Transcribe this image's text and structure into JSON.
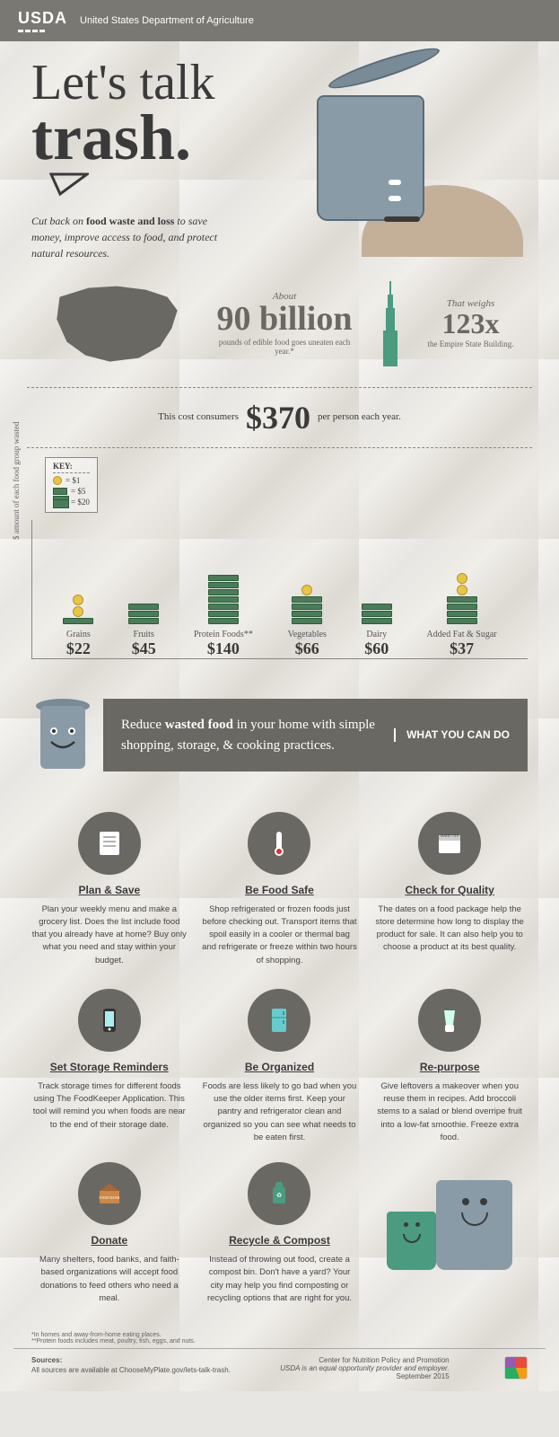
{
  "header": {
    "logo_text": "USDA",
    "subtitle": "United States Department of Agriculture"
  },
  "hero": {
    "title_line1": "Let's talk",
    "title_line2": "trash.",
    "subtitle_pre": "Cut back on ",
    "subtitle_bold": "food waste and loss",
    "subtitle_post": " to save money, improve access to food, and protect natural resources."
  },
  "stat_food": {
    "about": "About",
    "number": "90 billion",
    "desc": "pounds of edible food goes uneaten each year.*"
  },
  "stat_weight": {
    "pre": "That weighs",
    "number": "123x",
    "desc": "the Empire State Building."
  },
  "cost": {
    "pre": "This cost consumers",
    "amount": "$370",
    "post": "per person each year."
  },
  "chart": {
    "y_label": "$ amount of each food group wasted",
    "key_title": "KEY:",
    "key_coin": "= $1",
    "key_bill": "= $5",
    "key_stack": "= $20",
    "categories": [
      {
        "label": "Grains",
        "amount": "$22",
        "value": 22
      },
      {
        "label": "Fruits",
        "amount": "$45",
        "value": 45
      },
      {
        "label": "Protein Foods**",
        "amount": "$140",
        "value": 140
      },
      {
        "label": "Vegetables",
        "amount": "$66",
        "value": 66
      },
      {
        "label": "Dairy",
        "amount": "$60",
        "value": 60
      },
      {
        "label": "Added Fat & Sugar",
        "amount": "$37",
        "value": 37
      }
    ],
    "colors": {
      "bill": "#4a7c59",
      "bill_border": "#2a5c39",
      "coin": "#e8c547",
      "coin_border": "#b89527"
    }
  },
  "reduce": {
    "main_pre": "Reduce ",
    "main_bold": "wasted food",
    "main_post": " in your home with simple shopping, storage, & cooking practices.",
    "side": "WHAT YOU CAN DO"
  },
  "tips": [
    {
      "title": "Plan & Save",
      "desc": "Plan your weekly menu and make a grocery list. Does the list include food that you already have at home? Buy only what you need and stay within your budget.",
      "icon": "list"
    },
    {
      "title": "Be Food Safe",
      "desc": "Shop refrigerated or frozen foods just before checking out. Transport items that spoil easily in a cooler or thermal bag and refrigerate or freeze within two hours of shopping.",
      "icon": "thermometer"
    },
    {
      "title": "Check for Quality",
      "desc": "The dates on a food package help the store determine how long to display the product for sale. It can also help you to choose a product at its best quality.",
      "icon": "date"
    },
    {
      "title": "Set Storage Reminders",
      "desc": "Track storage times for different foods using The FoodKeeper Application. This tool will remind you when foods are near to the end of their storage date.",
      "icon": "phone"
    },
    {
      "title": "Be Organized",
      "desc": "Foods are less likely to go bad when you use the older items first. Keep your pantry and refrigerator clean and organized so you can see what needs to be eaten first.",
      "icon": "fridge"
    },
    {
      "title": "Re-purpose",
      "desc": "Give leftovers a makeover when you reuse them in recipes. Add broccoli stems to a salad or blend overripe fruit into a low-fat smoothie. Freeze extra food.",
      "icon": "blender"
    },
    {
      "title": "Donate",
      "desc": "Many shelters, food banks, and faith-based organizations will accept food donations to feed others who need a meal.",
      "icon": "foodbank"
    },
    {
      "title": "Recycle & Compost",
      "desc": "Instead of throwing out food, create a compost bin. Don't have a yard? Your city may help you find composting or recycling options that are right for you.",
      "icon": "recycle"
    }
  ],
  "footnotes": {
    "note1": "*In homes and away-from-home eating places.",
    "note2": "**Protein foods includes meat, poultry, fish, eggs, and nuts."
  },
  "footer": {
    "sources_label": "Sources:",
    "sources_text": "All sources are available at ChooseMyPlate.gov/lets-talk-trash.",
    "center": "Center for Nutrition Policy and Promotion",
    "equal": "USDA is an equal opportunity provider and employer.",
    "date": "September 2015"
  },
  "colors": {
    "header_bg": "#7a7872",
    "dark_gray": "#6a6862",
    "can_blue": "#8a9ba8",
    "empire_green": "#4a9b7f",
    "text": "#3a3a3a"
  }
}
